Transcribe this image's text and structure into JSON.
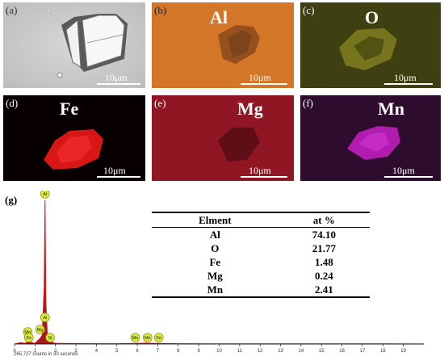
{
  "panels": [
    {
      "label": "(a)",
      "title": "",
      "scale": "10μm"
    },
    {
      "label": "(b)",
      "title": "Al",
      "scale": "10μm"
    },
    {
      "label": "(c)",
      "title": "O",
      "scale": "10μm"
    },
    {
      "label": "(d)",
      "title": "Fe",
      "scale": "10μm"
    },
    {
      "label": "(e)",
      "title": "Mg",
      "scale": "10μm"
    },
    {
      "label": "(f)",
      "title": "Mn",
      "scale": "10μm"
    }
  ],
  "spectrum": {
    "label": "(g)",
    "footer": "265,727 counts in 30 seconds",
    "badges": [
      "Al",
      "Al",
      "Mn",
      "Mg",
      "Si",
      "Fe",
      "Mn",
      "Mn",
      "Fe"
    ]
  },
  "table": {
    "headers": [
      "Elment",
      "at %"
    ],
    "rows": [
      {
        "element": "Al",
        "value": "74.10"
      },
      {
        "element": "O",
        "value": "21.77"
      },
      {
        "element": "Fe",
        "value": "1.48"
      },
      {
        "element": "Mg",
        "value": "0.24"
      },
      {
        "element": "Mn",
        "value": "2.41"
      }
    ]
  },
  "chart_data": {
    "type": "line",
    "x": [
      0,
      0.3,
      0.5,
      0.7,
      1.0,
      1.25,
      1.35,
      1.45,
      1.49,
      1.53,
      1.6,
      1.74,
      1.85,
      2.0,
      3,
      4,
      5,
      5.9,
      6.4,
      7.05,
      8,
      10,
      12,
      14,
      16,
      18,
      20
    ],
    "y": [
      0,
      1,
      0.5,
      1.5,
      0.5,
      4,
      6,
      40,
      100,
      30,
      6,
      3,
      1,
      0.5,
      0.3,
      0.2,
      0.2,
      0.4,
      0.6,
      0.4,
      0.2,
      0.1,
      0.1,
      0.1,
      0.1,
      0.1,
      0.05
    ],
    "xlim": [
      0,
      20
    ],
    "ylim": [
      0,
      100
    ],
    "xticks": [
      "0",
      "1",
      "2",
      "3",
      "4",
      "5",
      "6",
      "7",
      "8",
      "9",
      "10",
      "11",
      "12",
      "13",
      "14",
      "15",
      "16",
      "17",
      "18",
      "19"
    ],
    "xlabel": "",
    "ylabel": "",
    "colors": {
      "line": "#cc1a1a",
      "fill": "#a8181c",
      "badge": "#d6e63a"
    }
  }
}
